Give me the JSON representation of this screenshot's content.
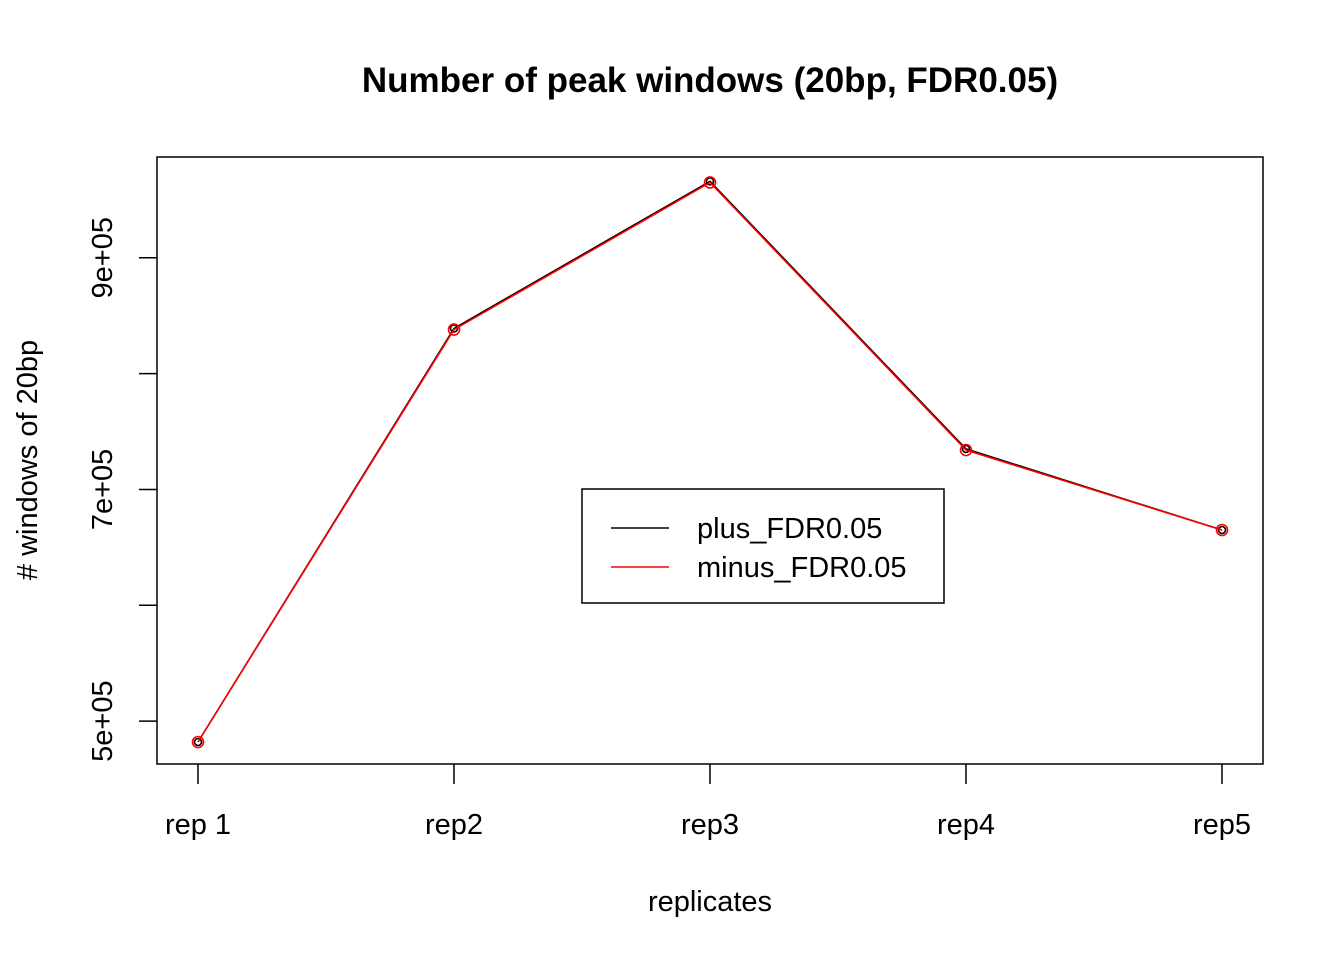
{
  "chart_data": {
    "type": "line",
    "title": "Number of peak windows (20bp, FDR0.05)",
    "xlabel": "replicates",
    "ylabel": "# windows of 20bp",
    "categories": [
      "rep 1",
      "rep2",
      "rep3",
      "rep4",
      "rep5"
    ],
    "y_ticks": [
      500000,
      600000,
      700000,
      800000,
      900000
    ],
    "y_tick_labels": [
      "5e+05",
      "",
      "7e+05",
      "",
      "9e+05"
    ],
    "ylim": [
      463000,
      987000
    ],
    "grid": false,
    "legend_position": "center-right",
    "series": [
      {
        "name": "plus_FDR0.05",
        "color": "#000000",
        "values": [
          482000,
          839000,
          966000,
          735000,
          665000
        ]
      },
      {
        "name": "minus_FDR0.05",
        "color": "#ff0000",
        "values": [
          482000,
          838000,
          965000,
          734000,
          665000
        ]
      }
    ]
  }
}
